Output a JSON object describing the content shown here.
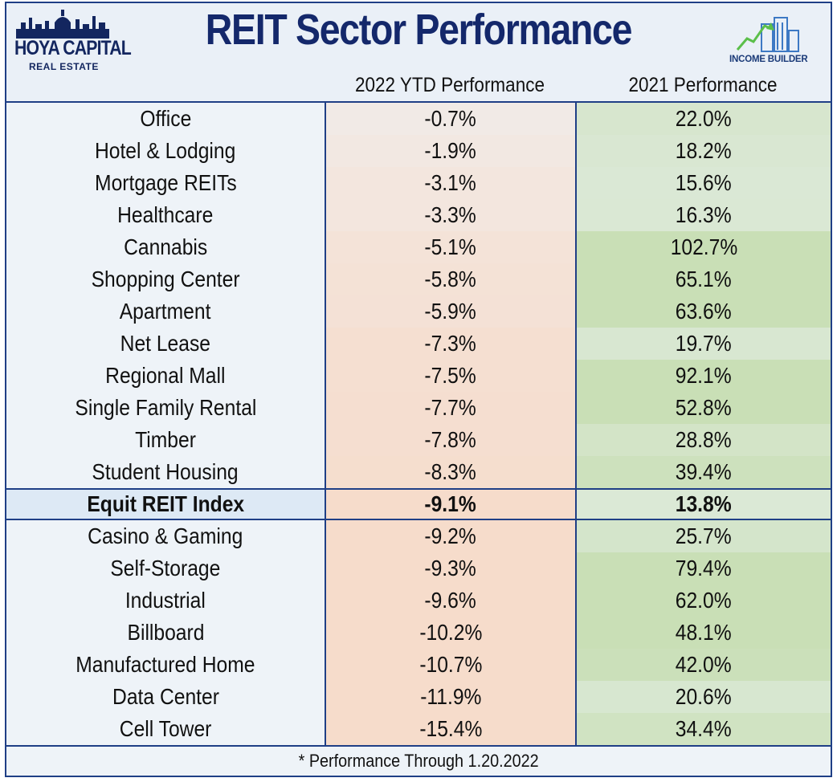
{
  "header": {
    "title": "REIT Sector Performance",
    "left_logo": {
      "brand": "HOYA CAPITAL",
      "sub": "REAL ESTATE"
    },
    "right_logo": {
      "label": "INCOME BUILDER"
    }
  },
  "colors": {
    "frame_border": "#1f3f86",
    "title": "#14286b",
    "panel_bg": "#eef3f8",
    "negative_fill_max": "#f6dccb",
    "positive_fill_max": "#c9dfb6"
  },
  "chart_data": {
    "type": "table",
    "title": "REIT Sector Performance",
    "columns": [
      "",
      "2022 YTD Performance",
      "2021 Performance"
    ],
    "rows": [
      {
        "name": "Office",
        "ytd": "-0.7%",
        "y2021": "22.0%",
        "ytd_value": -0.7,
        "y2021_value": 22.0
      },
      {
        "name": "Hotel & Lodging",
        "ytd": "-1.9%",
        "y2021": "18.2%",
        "ytd_value": -1.9,
        "y2021_value": 18.2
      },
      {
        "name": "Mortgage REITs",
        "ytd": "-3.1%",
        "y2021": "15.6%",
        "ytd_value": -3.1,
        "y2021_value": 15.6
      },
      {
        "name": "Healthcare",
        "ytd": "-3.3%",
        "y2021": "16.3%",
        "ytd_value": -3.3,
        "y2021_value": 16.3
      },
      {
        "name": "Cannabis",
        "ytd": "-5.1%",
        "y2021": "102.7%",
        "ytd_value": -5.1,
        "y2021_value": 102.7
      },
      {
        "name": "Shopping Center",
        "ytd": "-5.8%",
        "y2021": "65.1%",
        "ytd_value": -5.8,
        "y2021_value": 65.1
      },
      {
        "name": "Apartment",
        "ytd": "-5.9%",
        "y2021": "63.6%",
        "ytd_value": -5.9,
        "y2021_value": 63.6
      },
      {
        "name": "Net Lease",
        "ytd": "-7.3%",
        "y2021": "19.7%",
        "ytd_value": -7.3,
        "y2021_value": 19.7
      },
      {
        "name": "Regional Mall",
        "ytd": "-7.5%",
        "y2021": "92.1%",
        "ytd_value": -7.5,
        "y2021_value": 92.1
      },
      {
        "name": "Single Family Rental",
        "ytd": "-7.7%",
        "y2021": "52.8%",
        "ytd_value": -7.7,
        "y2021_value": 52.8
      },
      {
        "name": "Timber",
        "ytd": "-7.8%",
        "y2021": "28.8%",
        "ytd_value": -7.8,
        "y2021_value": 28.8
      },
      {
        "name": "Student Housing",
        "ytd": "-8.3%",
        "y2021": "39.4%",
        "ytd_value": -8.3,
        "y2021_value": 39.4
      },
      {
        "name": "Equit REIT Index",
        "ytd": "-9.1%",
        "y2021": "13.8%",
        "ytd_value": -9.1,
        "y2021_value": 13.8,
        "highlight": true
      },
      {
        "name": "Casino & Gaming",
        "ytd": "-9.2%",
        "y2021": "25.7%",
        "ytd_value": -9.2,
        "y2021_value": 25.7
      },
      {
        "name": "Self-Storage",
        "ytd": "-9.3%",
        "y2021": "79.4%",
        "ytd_value": -9.3,
        "y2021_value": 79.4
      },
      {
        "name": "Industrial",
        "ytd": "-9.6%",
        "y2021": "62.0%",
        "ytd_value": -9.6,
        "y2021_value": 62.0
      },
      {
        "name": "Billboard",
        "ytd": "-10.2%",
        "y2021": "48.1%",
        "ytd_value": -10.2,
        "y2021_value": 48.1
      },
      {
        "name": "Manufactured Home",
        "ytd": "-10.7%",
        "y2021": "42.0%",
        "ytd_value": -10.7,
        "y2021_value": 42.0
      },
      {
        "name": "Data Center",
        "ytd": "-11.9%",
        "y2021": "20.6%",
        "ytd_value": -11.9,
        "y2021_value": 20.6
      },
      {
        "name": "Cell Tower",
        "ytd": "-15.4%",
        "y2021": "34.4%",
        "ytd_value": -15.4,
        "y2021_value": 34.4
      }
    ],
    "footnote": "* Performance Through 1.20.2022"
  }
}
